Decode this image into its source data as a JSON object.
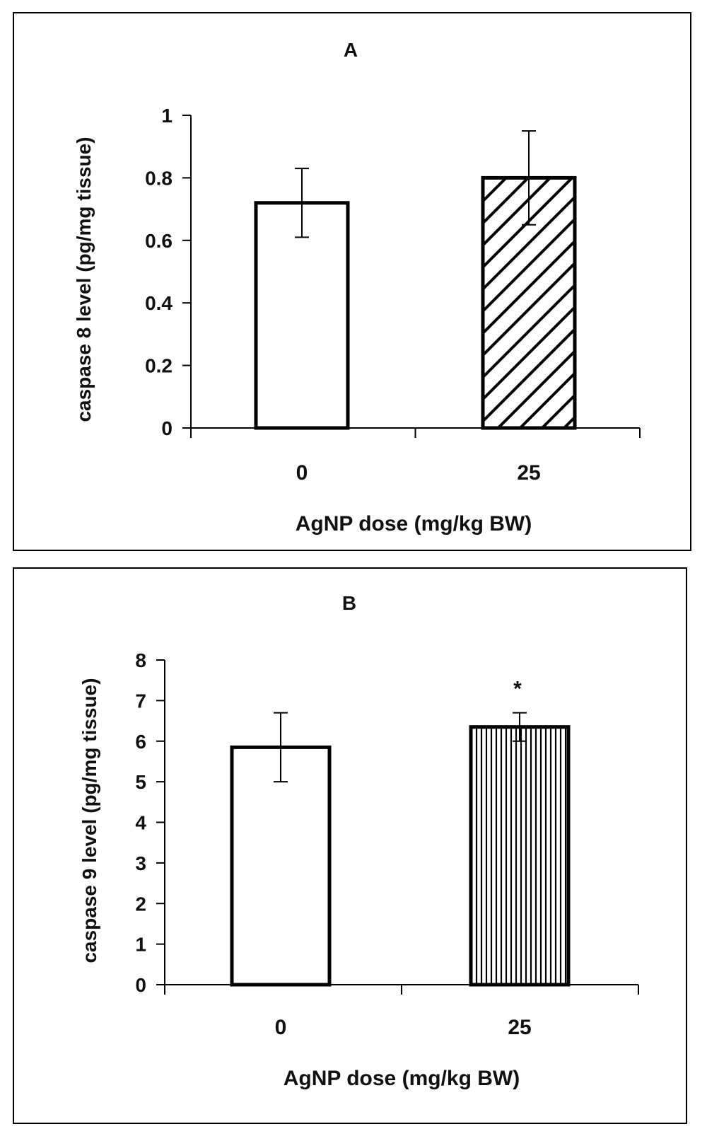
{
  "chart_data": [
    {
      "type": "bar",
      "title": "A",
      "categories": [
        "0",
        "25"
      ],
      "values": [
        0.72,
        0.8
      ],
      "errors": [
        0.11,
        0.15
      ],
      "xlabel": "AgNP dose (mg/kg BW)",
      "ylabel": "caspase 8 level (pg/mg tissue)",
      "ylim": [
        0,
        1
      ],
      "yticks": [
        "0",
        "0.2",
        "0.4",
        "0.6",
        "0.8",
        "1"
      ],
      "ytick_values": [
        0,
        0.2,
        0.4,
        0.6,
        0.8,
        1
      ],
      "fills": [
        "white",
        "diagonal-hatch"
      ],
      "annotations": [
        "",
        ""
      ],
      "grid": false
    },
    {
      "type": "bar",
      "title": "B",
      "categories": [
        "0",
        "25"
      ],
      "values": [
        5.85,
        6.35
      ],
      "errors": [
        0.85,
        0.35
      ],
      "xlabel": "AgNP dose (mg/kg BW)",
      "ylabel": "caspase 9 level (pg/mg tissue)",
      "ylim": [
        0,
        8
      ],
      "yticks": [
        "0",
        "1",
        "2",
        "3",
        "4",
        "5",
        "6",
        "7",
        "8"
      ],
      "ytick_values": [
        0,
        1,
        2,
        3,
        4,
        5,
        6,
        7,
        8
      ],
      "fills": [
        "white",
        "vertical-hatch"
      ],
      "annotations": [
        "",
        "*"
      ],
      "grid": false
    }
  ]
}
